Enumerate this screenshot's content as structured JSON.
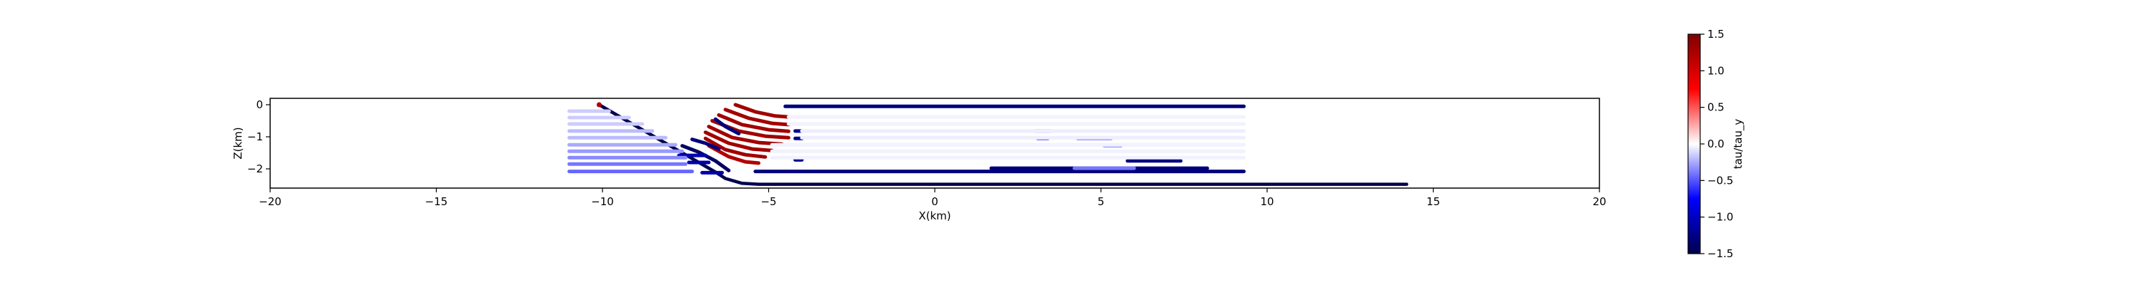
{
  "chart_data": {
    "type": "scatter",
    "title": "",
    "xlabel": "X(km)",
    "ylabel": "Z(km)",
    "xlim": [
      -20,
      20
    ],
    "ylim": [
      -2.6,
      0.2
    ],
    "x_ticks": [
      -20,
      -15,
      -10,
      -5,
      0,
      5,
      10,
      15,
      20
    ],
    "y_ticks": [
      0,
      -1,
      -2
    ],
    "grid": false,
    "legend": "none",
    "colorbar": {
      "label": "tau/tau_y",
      "range": [
        -1.5,
        1.5
      ],
      "ticks": [
        1.5,
        1.0,
        0.5,
        0.0,
        -0.5,
        -1.0,
        -1.5
      ],
      "tick_labels": [
        "1.5",
        "1.0",
        "0.5",
        "0.0",
        "−0.5",
        "−1.0",
        "−1.5"
      ],
      "colormap": "seismic",
      "colors": [
        "#00004c",
        "#0000ff",
        "#ffffff",
        "#ff0000",
        "#800000"
      ]
    },
    "series": [
      {
        "kind": "polyline",
        "points": [
          [
            -10.1,
            0.0
          ],
          [
            -6.6,
            -2.1
          ],
          [
            -6.3,
            -2.3
          ],
          [
            -5.8,
            -2.45
          ],
          [
            -5.3,
            -2.48
          ],
          [
            14.2,
            -2.48
          ]
        ],
        "tau": -1.5
      },
      {
        "kind": "point",
        "points": [
          [
            -10.1,
            0.0
          ]
        ],
        "tau": 1.2
      },
      {
        "kind": "arc",
        "points": [
          [
            -6.0,
            0.0
          ],
          [
            -5.4,
            -0.22
          ],
          [
            -4.8,
            -0.35
          ],
          [
            -4.4,
            -0.38
          ]
        ],
        "tau": 1.3
      },
      {
        "kind": "arc",
        "points": [
          [
            -6.3,
            -0.15
          ],
          [
            -5.6,
            -0.42
          ],
          [
            -4.9,
            -0.58
          ],
          [
            -4.4,
            -0.62
          ]
        ],
        "tau": 1.3
      },
      {
        "kind": "arc",
        "points": [
          [
            -6.5,
            -0.32
          ],
          [
            -5.8,
            -0.62
          ],
          [
            -5.0,
            -0.78
          ],
          [
            -4.4,
            -0.83
          ]
        ],
        "tau": 1.3
      },
      {
        "kind": "arc",
        "points": [
          [
            -6.7,
            -0.5
          ],
          [
            -5.9,
            -0.82
          ],
          [
            -5.1,
            -0.98
          ],
          [
            -4.4,
            -1.03
          ]
        ],
        "tau": 1.3
      },
      {
        "kind": "arc",
        "points": [
          [
            -6.8,
            -0.68
          ],
          [
            -6.1,
            -1.02
          ],
          [
            -5.3,
            -1.18
          ],
          [
            -4.6,
            -1.23
          ]
        ],
        "tau": 1.3
      },
      {
        "kind": "arc",
        "points": [
          [
            -6.9,
            -0.86
          ],
          [
            -6.2,
            -1.2
          ],
          [
            -5.5,
            -1.38
          ],
          [
            -4.9,
            -1.43
          ]
        ],
        "tau": 1.3
      },
      {
        "kind": "arc",
        "points": [
          [
            -6.9,
            -1.05
          ],
          [
            -6.3,
            -1.4
          ],
          [
            -5.7,
            -1.56
          ],
          [
            -5.1,
            -1.63
          ]
        ],
        "tau": 1.3
      },
      {
        "kind": "arc",
        "points": [
          [
            -6.8,
            -1.28
          ],
          [
            -6.2,
            -1.62
          ],
          [
            -5.7,
            -1.78
          ],
          [
            -5.3,
            -1.82
          ]
        ],
        "tau": 1.2
      },
      {
        "kind": "arc",
        "points": [
          [
            -6.6,
            -0.45
          ],
          [
            -6.3,
            -0.68
          ],
          [
            -5.9,
            -0.9
          ]
        ],
        "tau": -1.3
      },
      {
        "kind": "arc",
        "points": [
          [
            -7.3,
            -1.08
          ],
          [
            -6.9,
            -1.2
          ],
          [
            -6.5,
            -1.38
          ]
        ],
        "tau": -1.3
      },
      {
        "kind": "arc",
        "points": [
          [
            -7.6,
            -1.28
          ],
          [
            -7.1,
            -1.48
          ],
          [
            -6.6,
            -1.75
          ],
          [
            -6.2,
            -2.05
          ]
        ],
        "tau": -1.4
      },
      {
        "kind": "segment",
        "points": [
          [
            -4.5,
            -0.05
          ],
          [
            9.3,
            -0.05
          ]
        ],
        "tau": -1.3
      },
      {
        "kind": "segment",
        "points": [
          [
            -5.4,
            -2.08
          ],
          [
            9.3,
            -2.08
          ]
        ],
        "tau": -1.3
      },
      {
        "kind": "segment",
        "points": [
          [
            1.7,
            -1.98
          ],
          [
            8.2,
            -1.98
          ]
        ],
        "tau": -1.3
      },
      {
        "kind": "segment",
        "points": [
          [
            5.8,
            -1.75
          ],
          [
            7.4,
            -1.75
          ]
        ],
        "tau": -1.3
      },
      {
        "kind": "segment",
        "points": [
          [
            -7.7,
            -1.58
          ],
          [
            -6.9,
            -1.58
          ]
        ],
        "tau": -1.1
      },
      {
        "kind": "segment",
        "points": [
          [
            -7.4,
            -1.8
          ],
          [
            -6.8,
            -1.8
          ]
        ],
        "tau": -1.1
      },
      {
        "kind": "segment",
        "points": [
          [
            -7.0,
            -2.12
          ],
          [
            -6.4,
            -2.12
          ]
        ],
        "tau": -1.1
      },
      {
        "kind": "segment",
        "points": [
          [
            -4.2,
            -1.72
          ],
          [
            -4.0,
            -1.72
          ]
        ],
        "tau": -1.2
      },
      {
        "kind": "segment",
        "points": [
          [
            -4.2,
            -1.7
          ],
          [
            -4.0,
            -1.7
          ]
        ],
        "tau": -1.2
      },
      {
        "kind": "segment",
        "points": [
          [
            -4.2,
            -0.82
          ],
          [
            -4.0,
            -0.82
          ]
        ],
        "tau": -1.2
      },
      {
        "kind": "segment",
        "points": [
          [
            -4.2,
            -1.05
          ],
          [
            -4.0,
            -1.05
          ]
        ],
        "tau": -1.2
      },
      {
        "kind": "segment",
        "points": [
          [
            3.0,
            -0.82
          ],
          [
            3.5,
            -0.82
          ]
        ],
        "tau": -0.5
      },
      {
        "kind": "segment",
        "points": [
          [
            3.1,
            -1.05
          ],
          [
            3.4,
            -1.05
          ]
        ],
        "tau": -0.5
      },
      {
        "kind": "segment",
        "points": [
          [
            4.3,
            -1.05
          ],
          [
            5.3,
            -1.05
          ]
        ],
        "tau": -0.4
      },
      {
        "kind": "segment",
        "points": [
          [
            5.1,
            -1.28
          ],
          [
            5.6,
            -1.28
          ]
        ],
        "tau": -0.3
      },
      {
        "kind": "segment",
        "points": [
          [
            4.2,
            -1.98
          ],
          [
            6.0,
            -1.98
          ]
        ],
        "tau": -0.4
      },
      {
        "kind": "segment",
        "points": [
          [
            -11.0,
            -0.2
          ],
          [
            -9.8,
            -0.2
          ]
        ],
        "tau": -0.15
      },
      {
        "kind": "segment",
        "points": [
          [
            -11.0,
            -0.4
          ],
          [
            -9.2,
            -0.4
          ]
        ],
        "tau": -0.15
      },
      {
        "kind": "segment",
        "points": [
          [
            -11.0,
            -0.6
          ],
          [
            -8.8,
            -0.6
          ]
        ],
        "tau": -0.15
      },
      {
        "kind": "segment",
        "points": [
          [
            -11.0,
            -0.82
          ],
          [
            -8.5,
            -0.82
          ]
        ],
        "tau": -0.2
      },
      {
        "kind": "segment",
        "points": [
          [
            -11.0,
            -1.03
          ],
          [
            -8.1,
            -1.03
          ]
        ],
        "tau": -0.2
      },
      {
        "kind": "segment",
        "points": [
          [
            -11.0,
            -1.25
          ],
          [
            -7.8,
            -1.25
          ]
        ],
        "tau": -0.25
      },
      {
        "kind": "segment",
        "points": [
          [
            -11.0,
            -1.45
          ],
          [
            -7.6,
            -1.45
          ]
        ],
        "tau": -0.3
      },
      {
        "kind": "segment",
        "points": [
          [
            -11.0,
            -1.65
          ],
          [
            -7.5,
            -1.65
          ]
        ],
        "tau": -0.35
      },
      {
        "kind": "segment",
        "points": [
          [
            -11.0,
            -1.85
          ],
          [
            -7.5,
            -1.85
          ]
        ],
        "tau": -0.4
      },
      {
        "kind": "segment",
        "points": [
          [
            -11.0,
            -2.08
          ],
          [
            -7.3,
            -2.08
          ]
        ],
        "tau": -0.45
      },
      {
        "kind": "segment",
        "points": [
          [
            -4.0,
            -0.82
          ],
          [
            9.3,
            -0.82
          ]
        ],
        "tau": -0.05
      },
      {
        "kind": "segment",
        "points": [
          [
            -4.0,
            -1.03
          ],
          [
            9.3,
            -1.03
          ]
        ],
        "tau": -0.05
      },
      {
        "kind": "segment",
        "points": [
          [
            -4.4,
            -0.6
          ],
          [
            9.3,
            -0.6
          ]
        ],
        "tau": -0.04
      },
      {
        "kind": "segment",
        "points": [
          [
            -4.4,
            -0.38
          ],
          [
            9.3,
            -0.38
          ]
        ],
        "tau": -0.04
      },
      {
        "kind": "segment",
        "points": [
          [
            -4.9,
            -1.25
          ],
          [
            9.3,
            -1.25
          ]
        ],
        "tau": -0.04
      },
      {
        "kind": "segment",
        "points": [
          [
            -4.9,
            -1.45
          ],
          [
            9.3,
            -1.45
          ]
        ],
        "tau": -0.04
      },
      {
        "kind": "segment",
        "points": [
          [
            -4.9,
            -1.65
          ],
          [
            9.3,
            -1.65
          ]
        ],
        "tau": -0.04
      }
    ]
  }
}
